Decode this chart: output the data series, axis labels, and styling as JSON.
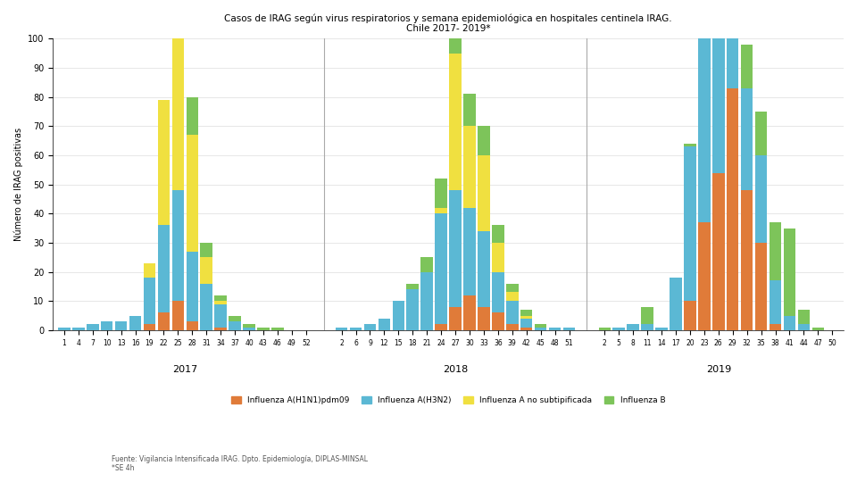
{
  "title1": "Casos de IRAG según virus respiratorios y semana epidemiológica en hospitales centinela IRAG.",
  "title2": "Chile 2017- 2019*",
  "ylabel": "Número de IRAG positivas",
  "year_labels": [
    "2017",
    "2018",
    "2019"
  ],
  "legend_labels": [
    "Influenza A(H1N1)pdm09",
    "Influenza A(H3N2)",
    "Influenza A no subtipificada",
    "Influenza B"
  ],
  "colors": [
    "#E07B39",
    "#5BB8D4",
    "#F0E040",
    "#7DC45A"
  ],
  "source": "Fuente: Vigilancia Intensificada IRAG. Dpto. Epidemiología, DIPLAS-MINSAL\n*SE 4h",
  "ylim": [
    0,
    100
  ],
  "yticks": [
    0,
    10,
    20,
    30,
    40,
    50,
    60,
    70,
    80,
    90,
    100
  ],
  "weeks_2017": [
    1,
    4,
    7,
    10,
    13,
    16,
    19,
    22,
    25,
    28,
    31,
    34,
    37,
    40,
    43,
    46,
    49,
    52
  ],
  "weeks_2018": [
    2,
    6,
    9,
    12,
    15,
    18,
    21,
    24,
    27,
    30,
    33,
    36,
    39,
    42,
    45,
    48,
    51
  ],
  "weeks_2019": [
    2,
    5,
    8,
    11,
    14,
    17,
    20,
    23,
    26,
    29,
    32,
    35,
    38,
    41,
    44,
    47,
    50
  ],
  "H1N1_2017": [
    0,
    0,
    0,
    0,
    0,
    0,
    2,
    6,
    10,
    3,
    0,
    1,
    0,
    0,
    0,
    0,
    0,
    0
  ],
  "H3N2_2017": [
    1,
    1,
    2,
    3,
    3,
    5,
    16,
    30,
    38,
    24,
    16,
    8,
    3,
    1,
    0,
    0,
    0,
    0
  ],
  "Anosub_2017": [
    0,
    0,
    0,
    0,
    0,
    0,
    5,
    43,
    54,
    40,
    9,
    1,
    0,
    0,
    0,
    0,
    0,
    0
  ],
  "B_2017": [
    0,
    0,
    0,
    0,
    0,
    0,
    0,
    0,
    7,
    13,
    5,
    2,
    2,
    1,
    1,
    1,
    0,
    0
  ],
  "H1N1_2018": [
    0,
    0,
    0,
    0,
    0,
    0,
    0,
    2,
    8,
    12,
    8,
    6,
    2,
    1,
    0,
    0,
    0
  ],
  "H3N2_2018": [
    1,
    1,
    2,
    4,
    10,
    14,
    20,
    38,
    40,
    30,
    26,
    14,
    8,
    3,
    1,
    1,
    1
  ],
  "Anosub_2018": [
    0,
    0,
    0,
    0,
    0,
    0,
    0,
    2,
    47,
    28,
    26,
    10,
    3,
    1,
    0,
    0,
    0
  ],
  "B_2018": [
    0,
    0,
    0,
    0,
    0,
    2,
    5,
    10,
    11,
    11,
    10,
    6,
    3,
    2,
    1,
    0,
    0
  ],
  "H1N1_2019": [
    0,
    0,
    0,
    0,
    0,
    0,
    10,
    37,
    54,
    83,
    48,
    30,
    2,
    0,
    0,
    0,
    0
  ],
  "H3N2_2019": [
    0,
    1,
    2,
    2,
    1,
    18,
    53,
    63,
    80,
    35,
    35,
    30,
    15,
    5,
    2,
    0,
    0
  ],
  "Anosub_2019": [
    0,
    0,
    0,
    0,
    0,
    0,
    0,
    0,
    0,
    0,
    0,
    0,
    0,
    0,
    0,
    0,
    0
  ],
  "B_2019": [
    1,
    0,
    0,
    6,
    0,
    0,
    1,
    14,
    47,
    48,
    15,
    15,
    20,
    30,
    5,
    1,
    0
  ],
  "background": "#FFFFFF",
  "plot_background": "#FFFFFF",
  "grid_color": "#DDDDDD"
}
